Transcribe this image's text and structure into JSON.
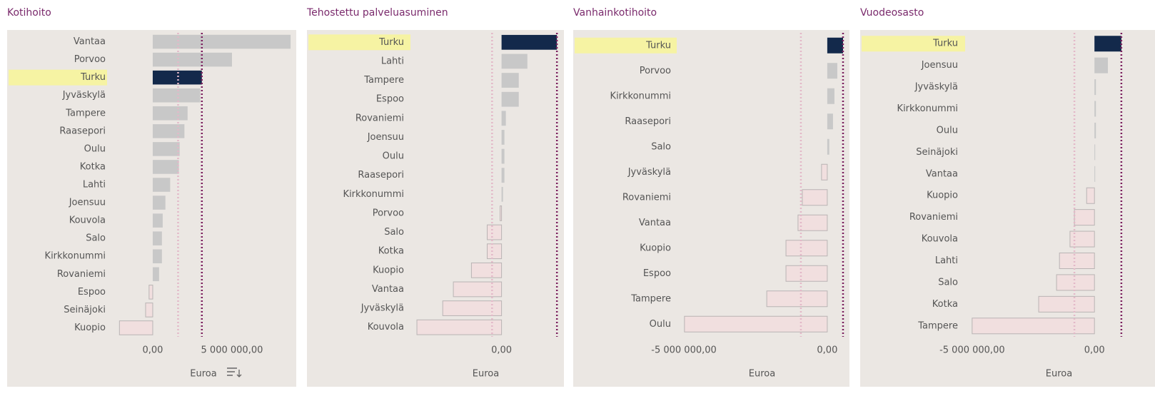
{
  "chart_data": [
    {
      "type": "bar",
      "title": "Kotihoito",
      "x_label": "Euroa",
      "categories": [
        "Vantaa",
        "Porvoo",
        "Turku",
        "Jyväskylä",
        "Tampere",
        "Raasepori",
        "Oulu",
        "Kotka",
        "Lahti",
        "Joensuu",
        "Kouvola",
        "Salo",
        "Kirkkonummi",
        "Rovaniemi",
        "Espoo",
        "Seinäjoki",
        "Kuopio"
      ],
      "values": [
        8700000,
        5000000,
        3100000,
        3000000,
        2200000,
        2000000,
        1700000,
        1650000,
        1100000,
        800000,
        630000,
        580000,
        580000,
        400000,
        -230000,
        -450000,
        -2100000
      ],
      "colors": [
        "#c8c8c8",
        "#c8c8c8",
        "#13294b",
        "#c8c8c8",
        "#c8c8c8",
        "#c8c8c8",
        "#c8c8c8",
        "#c8c8c8",
        "#c8c8c8",
        "#c8c8c8",
        "#c8c8c8",
        "#c8c8c8",
        "#c8c8c8",
        "#c8c8c8",
        "#f1dfdf",
        "#f1dfdf",
        "#f1dfdf"
      ],
      "highlight_bar_color": "#13294b",
      "highlight_label_color": "#f6f3a3",
      "xlim": [
        -2430000,
        8830000
      ],
      "xticks": [
        {
          "value": 0,
          "label": "0,00"
        },
        {
          "value": 5000000,
          "label": "5 000 000,00"
        }
      ],
      "reference_lines": [
        {
          "value": 1600000,
          "color": "#e3b8c8"
        },
        {
          "value": 3100000,
          "color": "#7b1f5e"
        }
      ]
    },
    {
      "type": "bar",
      "title": "Tehostettu palveluasuminen",
      "x_label": "Euroa",
      "categories": [
        "Turku",
        "Lahti",
        "Tampere",
        "Espoo",
        "Rovaniemi",
        "Joensuu",
        "Oulu",
        "Raasepori",
        "Kirkkonummi",
        "Porvoo",
        "Salo",
        "Kotka",
        "Kuopio",
        "Vantaa",
        "Jyväskylä",
        "Kouvola"
      ],
      "values": [
        1930000,
        900000,
        600000,
        600000,
        150000,
        100000,
        100000,
        100000,
        50000,
        -50000,
        -500000,
        -500000,
        -1050000,
        -1680000,
        -2050000,
        -2950000
      ],
      "colors": [
        "#13294b",
        "#c8c8c8",
        "#c8c8c8",
        "#c8c8c8",
        "#c8c8c8",
        "#c8c8c8",
        "#c8c8c8",
        "#c8c8c8",
        "#c8c8c8",
        "#f1dfdf",
        "#f1dfdf",
        "#f1dfdf",
        "#f1dfdf",
        "#f1dfdf",
        "#f1dfdf",
        "#f1dfdf"
      ],
      "highlight_bar_color": "#13294b",
      "highlight_label_color": "#f6f3a3",
      "xlim": [
        -3100000,
        2000000
      ],
      "xticks": [
        {
          "value": 0,
          "label": "0,00"
        }
      ],
      "reference_lines": [
        {
          "value": -330000,
          "color": "#e3b8c8"
        },
        {
          "value": 1930000,
          "color": "#7b1f5e"
        }
      ]
    },
    {
      "type": "bar",
      "title": "Vanhainkotihoito",
      "x_label": "Euroa",
      "categories": [
        "Turku",
        "Porvoo",
        "Kirkkonummi",
        "Raasepori",
        "Salo",
        "Jyväskylä",
        "Rovaniemi",
        "Vantaa",
        "Kuopio",
        "Espoo",
        "Tampere",
        "Oulu"
      ],
      "values": [
        550000,
        350000,
        250000,
        200000,
        70000,
        -200000,
        -870000,
        -1020000,
        -1440000,
        -1440000,
        -2110000,
        -4980000
      ],
      "colors": [
        "#13294b",
        "#c8c8c8",
        "#c8c8c8",
        "#c8c8c8",
        "#c8c8c8",
        "#f1dfdf",
        "#f1dfdf",
        "#f1dfdf",
        "#f1dfdf",
        "#f1dfdf",
        "#f1dfdf",
        "#f1dfdf"
      ],
      "highlight_bar_color": "#13294b",
      "highlight_label_color": "#f6f3a3",
      "xlim": [
        -5200000,
        650000
      ],
      "xticks": [
        {
          "value": -5000000,
          "label": "-5 000 000,00"
        },
        {
          "value": 0,
          "label": "0,00"
        }
      ],
      "reference_lines": [
        {
          "value": -920000,
          "color": "#e3b8c8"
        },
        {
          "value": 550000,
          "color": "#7b1f5e"
        }
      ]
    },
    {
      "type": "bar",
      "title": "Vuodeosasto",
      "x_label": "Euroa",
      "categories": [
        "Turku",
        "Joensuu",
        "Jyväskylä",
        "Kirkkonummi",
        "Oulu",
        "Seinäjoki",
        "Vantaa",
        "Kuopio",
        "Rovaniemi",
        "Kouvola",
        "Lahti",
        "Salo",
        "Kotka",
        "Tampere"
      ],
      "values": [
        1100000,
        550000,
        60000,
        60000,
        60000,
        30000,
        30000,
        -320000,
        -820000,
        -1000000,
        -1430000,
        -1550000,
        -2280000,
        -5000000
      ],
      "colors": [
        "#13294b",
        "#c8c8c8",
        "#c8c8c8",
        "#c8c8c8",
        "#c8c8c8",
        "#c8c8c8",
        "#c8c8c8",
        "#f1dfdf",
        "#f1dfdf",
        "#f1dfdf",
        "#f1dfdf",
        "#f1dfdf",
        "#f1dfdf",
        "#f1dfdf"
      ],
      "highlight_bar_color": "#13294b",
      "highlight_label_color": "#f6f3a3",
      "xlim": [
        -5200000,
        2300000
      ],
      "xticks": [
        {
          "value": -5000000,
          "label": "-5 000 000,00"
        },
        {
          "value": 0,
          "label": "0,00"
        }
      ],
      "reference_lines": [
        {
          "value": -820000,
          "color": "#e3b8c8"
        },
        {
          "value": 1100000,
          "color": "#7b1f5e"
        }
      ]
    }
  ]
}
